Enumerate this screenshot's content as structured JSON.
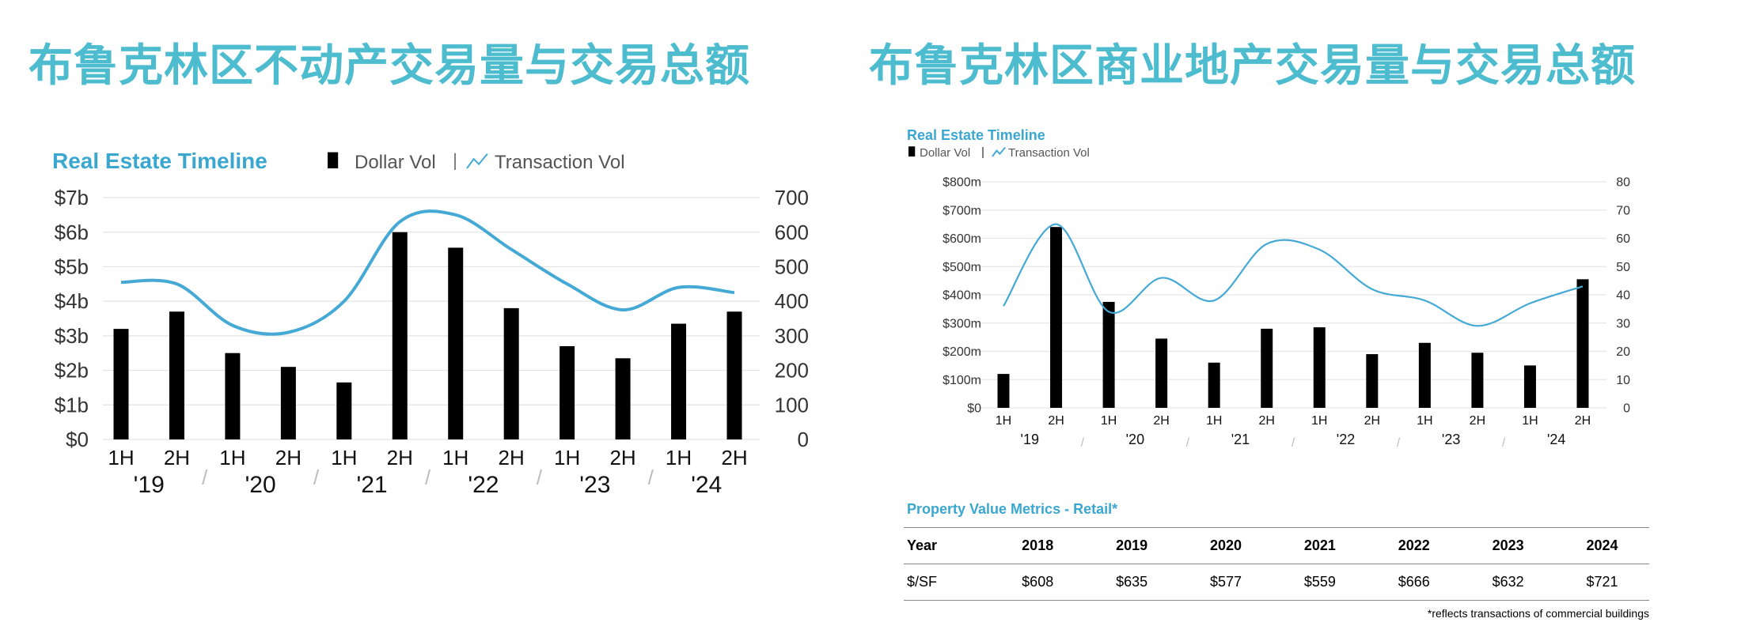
{
  "headlines": {
    "left": "布鲁克林区不动产交易量与交易总额",
    "right": "布鲁克林区商业地产交易量与交易总额"
  },
  "colors": {
    "headline": "#4ebccf",
    "line": "#45a9d6",
    "bar": "#000000",
    "chart_title": "#3aa7d0"
  },
  "chart_data": [
    {
      "type": "bar",
      "title": "Real Estate Timeline",
      "legend": {
        "bar_label": "Dollar Vol",
        "line_label": "Transaction Vol",
        "placement": "top"
      },
      "categories": [
        "1H",
        "2H",
        "1H",
        "2H",
        "1H",
        "2H",
        "1H",
        "2H",
        "1H",
        "2H",
        "1H",
        "2H"
      ],
      "groups": [
        "'19",
        "'20",
        "'21",
        "'22",
        "'23",
        "'24"
      ],
      "y_left": {
        "ticks": [
          "$0",
          "$1b",
          "$2b",
          "$3b",
          "$4b",
          "$5b",
          "$6b",
          "$7b"
        ],
        "ylim": [
          0,
          7
        ],
        "unit": "$b"
      },
      "y_right": {
        "ticks": [
          "0",
          "100",
          "200",
          "300",
          "400",
          "500",
          "600",
          "700"
        ],
        "ylim": [
          0,
          700
        ]
      },
      "series": [
        {
          "name": "Dollar Vol",
          "type": "bar",
          "axis": "left",
          "values": [
            3.2,
            3.7,
            2.5,
            2.1,
            1.65,
            6.0,
            5.55,
            3.8,
            2.7,
            2.35,
            3.35,
            3.7
          ]
        },
        {
          "name": "Transaction Vol",
          "type": "line",
          "axis": "right",
          "values": [
            455,
            450,
            330,
            310,
            400,
            630,
            650,
            550,
            450,
            375,
            440,
            425
          ]
        }
      ],
      "grid": true
    },
    {
      "type": "bar",
      "title": "Real Estate Timeline",
      "legend": {
        "bar_label": "Dollar Vol",
        "line_label": "Transaction Vol",
        "placement": "top"
      },
      "categories": [
        "1H",
        "2H",
        "1H",
        "2H",
        "1H",
        "2H",
        "1H",
        "2H",
        "1H",
        "2H",
        "1H",
        "2H"
      ],
      "groups": [
        "'19",
        "'20",
        "'21",
        "'22",
        "'23",
        "'24"
      ],
      "y_left": {
        "ticks": [
          "$0",
          "$100m",
          "$200m",
          "$300m",
          "$400m",
          "$500m",
          "$600m",
          "$700m",
          "$800m"
        ],
        "ylim": [
          0,
          800
        ],
        "unit": "$m"
      },
      "y_right": {
        "ticks": [
          "0",
          "10",
          "20",
          "30",
          "40",
          "50",
          "60",
          "70",
          "80"
        ],
        "ylim": [
          0,
          80
        ]
      },
      "series": [
        {
          "name": "Dollar Vol",
          "type": "bar",
          "axis": "left",
          "values": [
            120,
            640,
            375,
            245,
            160,
            280,
            285,
            190,
            230,
            195,
            150,
            455
          ]
        },
        {
          "name": "Transaction Vol",
          "type": "line",
          "axis": "right",
          "values": [
            36,
            65,
            34,
            46,
            38,
            58,
            56,
            42,
            38,
            29,
            37,
            43
          ]
        }
      ],
      "grid": true
    }
  ],
  "metrics_table": {
    "title": "Property Value Metrics - Retail*",
    "headers": [
      "Year",
      "2018",
      "2019",
      "2020",
      "2021",
      "2022",
      "2023",
      "2024"
    ],
    "rows": [
      [
        "$/SF",
        "$608",
        "$635",
        "$577",
        "$559",
        "$666",
        "$632",
        "$721"
      ]
    ],
    "footnote": "*reflects transactions of commercial buildings"
  }
}
